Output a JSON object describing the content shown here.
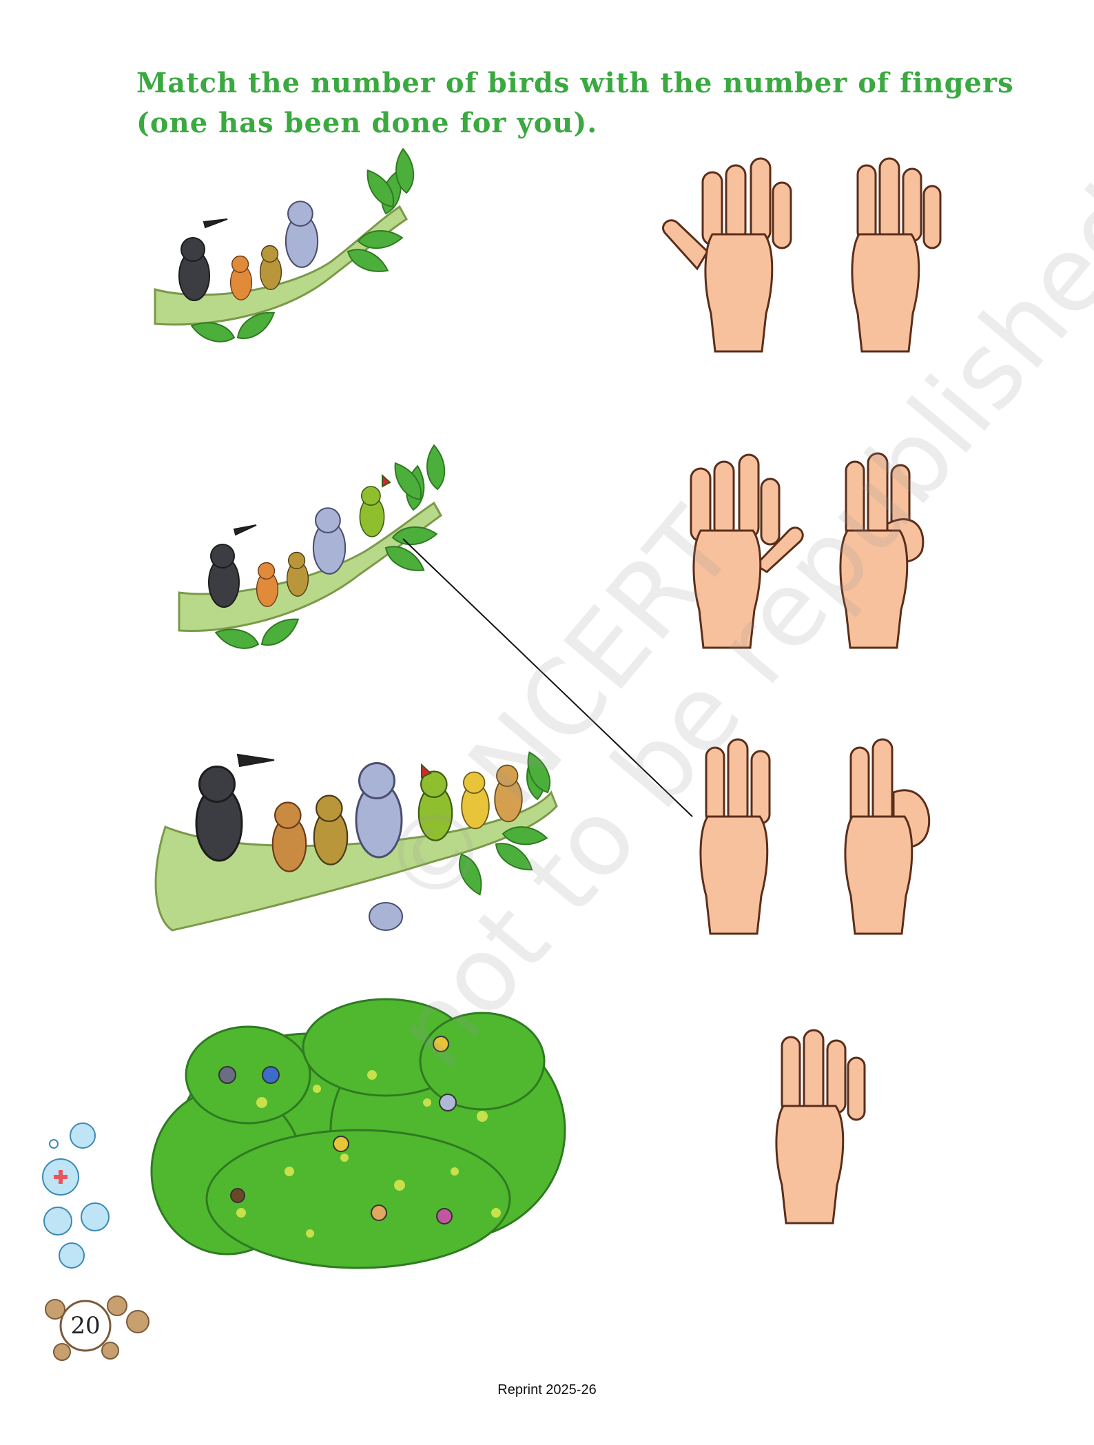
{
  "title": {
    "line1": "Match the number of birds with the number of fingers",
    "line2": "(one has been done for you)."
  },
  "rows": [
    {
      "birds": 4,
      "fingers_options": [
        5,
        4
      ]
    },
    {
      "birds": 5,
      "fingers_options": [
        5,
        3
      ]
    },
    {
      "birds": 8,
      "fingers_options": [
        3,
        2
      ]
    },
    {
      "birds": 7,
      "fingers_options": [
        4
      ]
    }
  ],
  "done_match": {
    "birds": 5,
    "fingers": 3
  },
  "watermark": {
    "line1": "© NCERT",
    "line2": "not to be republished"
  },
  "page_number": "20",
  "footer": "Reprint 2025-26",
  "colors": {
    "title": "#3aa940",
    "branch": "#b9d98a",
    "leaf": "#4caf3b",
    "skin": "#f7c19e",
    "skin_outline": "#5a2e1a",
    "tree": "#4fb82f"
  }
}
